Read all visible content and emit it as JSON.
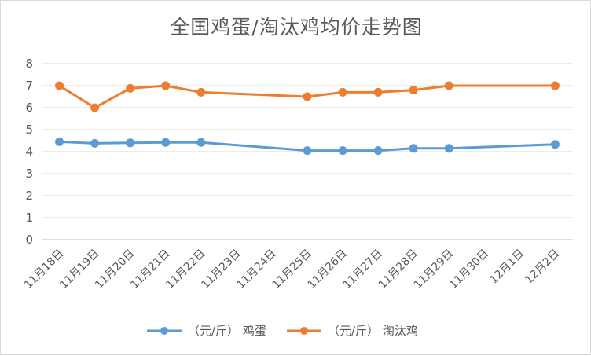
{
  "chart_data": {
    "type": "line",
    "title": "全国鸡蛋/淘汰鸡均价走势图",
    "categories": [
      "11月18日",
      "11月19日",
      "11月20日",
      "11月21日",
      "11月22日",
      "11月23日",
      "11月24日",
      "11月25日",
      "11月26日",
      "11月27日",
      "11月28日",
      "11月29日",
      "11月30日",
      "12月1日",
      "12月2日"
    ],
    "ylim": [
      0,
      8
    ],
    "yticks": [
      0,
      1,
      2,
      3,
      4,
      5,
      6,
      7,
      8
    ],
    "grid": true,
    "legend_position": "bottom",
    "series": [
      {
        "name": "（元/斤） 鸡蛋",
        "color": "#5b9bd5",
        "values": [
          4.45,
          4.38,
          4.4,
          4.42,
          4.42,
          null,
          null,
          4.05,
          4.05,
          4.05,
          4.15,
          4.15,
          null,
          null,
          4.33
        ]
      },
      {
        "name": "（元/斤） 淘汰鸡",
        "color": "#ed7d31",
        "values": [
          7.0,
          6.0,
          6.88,
          7.0,
          6.7,
          null,
          null,
          6.5,
          6.7,
          6.7,
          6.8,
          7.0,
          null,
          null,
          7.0
        ]
      }
    ]
  }
}
